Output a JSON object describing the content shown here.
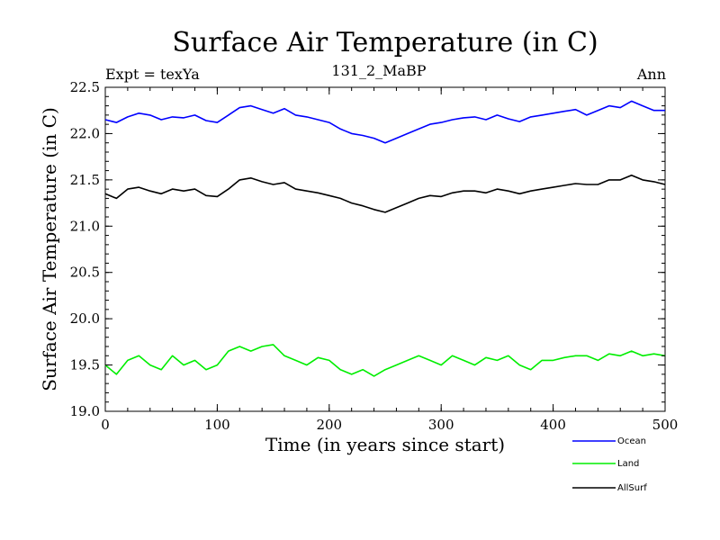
{
  "chart_data": {
    "type": "line",
    "title": "Surface Air Temperature (in C)",
    "subtitle": "131_2_MaBP",
    "left_label": "Expt = texYa",
    "right_label": "Ann",
    "xlabel": "Time (in years since start)",
    "ylabel": "Surface Air Temperature (in C)",
    "xlim": [
      0,
      500
    ],
    "ylim": [
      19.0,
      22.5
    ],
    "xticks": [
      "0",
      "100",
      "200",
      "300",
      "400",
      "500"
    ],
    "yticks": [
      "19.0",
      "19.5",
      "20.0",
      "20.5",
      "21.0",
      "21.5",
      "22.0",
      "22.5"
    ],
    "grid": false,
    "legend_position": "bottom-right, outside",
    "series": [
      {
        "name": "Ocean",
        "color": "#0000ff",
        "x": [
          0,
          10,
          20,
          30,
          40,
          50,
          60,
          70,
          80,
          90,
          100,
          110,
          120,
          130,
          140,
          150,
          160,
          170,
          180,
          190,
          200,
          210,
          220,
          230,
          240,
          250,
          260,
          270,
          280,
          290,
          300,
          310,
          320,
          330,
          340,
          350,
          360,
          370,
          380,
          390,
          400,
          410,
          420,
          430,
          440,
          450,
          460,
          470,
          480,
          490,
          500
        ],
        "values": [
          22.15,
          22.12,
          22.18,
          22.22,
          22.2,
          22.15,
          22.18,
          22.17,
          22.2,
          22.14,
          22.12,
          22.2,
          22.28,
          22.3,
          22.26,
          22.22,
          22.27,
          22.2,
          22.18,
          22.15,
          22.12,
          22.05,
          22.0,
          21.98,
          21.95,
          21.9,
          21.95,
          22.0,
          22.05,
          22.1,
          22.12,
          22.15,
          22.17,
          22.18,
          22.15,
          22.2,
          22.16,
          22.13,
          22.18,
          22.2,
          22.22,
          22.24,
          22.26,
          22.2,
          22.25,
          22.3,
          22.28,
          22.35,
          22.3,
          22.25,
          22.25
        ]
      },
      {
        "name": "Land",
        "color": "#00ee00",
        "x": [
          0,
          10,
          20,
          30,
          40,
          50,
          60,
          70,
          80,
          90,
          100,
          110,
          120,
          130,
          140,
          150,
          160,
          170,
          180,
          190,
          200,
          210,
          220,
          230,
          240,
          250,
          260,
          270,
          280,
          290,
          300,
          310,
          320,
          330,
          340,
          350,
          360,
          370,
          380,
          390,
          400,
          410,
          420,
          430,
          440,
          450,
          460,
          470,
          480,
          490,
          500
        ],
        "values": [
          19.5,
          19.4,
          19.55,
          19.6,
          19.5,
          19.45,
          19.6,
          19.5,
          19.55,
          19.45,
          19.5,
          19.65,
          19.7,
          19.65,
          19.7,
          19.72,
          19.6,
          19.55,
          19.5,
          19.58,
          19.55,
          19.45,
          19.4,
          19.45,
          19.38,
          19.45,
          19.5,
          19.55,
          19.6,
          19.55,
          19.5,
          19.6,
          19.55,
          19.5,
          19.58,
          19.55,
          19.6,
          19.5,
          19.45,
          19.55,
          19.55,
          19.58,
          19.6,
          19.6,
          19.55,
          19.62,
          19.6,
          19.65,
          19.6,
          19.62,
          19.6
        ]
      },
      {
        "name": "AllSurf",
        "color": "#000000",
        "x": [
          0,
          10,
          20,
          30,
          40,
          50,
          60,
          70,
          80,
          90,
          100,
          110,
          120,
          130,
          140,
          150,
          160,
          170,
          180,
          190,
          200,
          210,
          220,
          230,
          240,
          250,
          260,
          270,
          280,
          290,
          300,
          310,
          320,
          330,
          340,
          350,
          360,
          370,
          380,
          390,
          400,
          410,
          420,
          430,
          440,
          450,
          460,
          470,
          480,
          490,
          500
        ],
        "values": [
          21.35,
          21.3,
          21.4,
          21.42,
          21.38,
          21.35,
          21.4,
          21.38,
          21.4,
          21.33,
          21.32,
          21.4,
          21.5,
          21.52,
          21.48,
          21.45,
          21.47,
          21.4,
          21.38,
          21.36,
          21.33,
          21.3,
          21.25,
          21.22,
          21.18,
          21.15,
          21.2,
          21.25,
          21.3,
          21.33,
          21.32,
          21.36,
          21.38,
          21.38,
          21.36,
          21.4,
          21.38,
          21.35,
          21.38,
          21.4,
          21.42,
          21.44,
          21.46,
          21.45,
          21.45,
          21.5,
          21.5,
          21.55,
          21.5,
          21.48,
          21.45
        ]
      }
    ]
  }
}
